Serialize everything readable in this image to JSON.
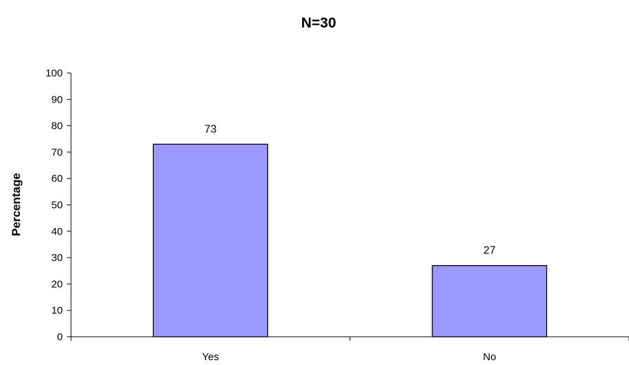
{
  "chart_data": {
    "type": "bar",
    "title": "N=30",
    "xlabel": "",
    "ylabel": "Percentage",
    "categories": [
      "Yes",
      "No"
    ],
    "values": [
      73,
      27
    ],
    "data_labels": [
      "73",
      "27"
    ],
    "ylim": [
      0,
      100
    ],
    "yticks": [
      0,
      10,
      20,
      30,
      40,
      50,
      60,
      70,
      80,
      90,
      100
    ],
    "grid": false,
    "legend": "none",
    "bar_color": "#9999ff",
    "bar_edge_color": "#000000"
  }
}
